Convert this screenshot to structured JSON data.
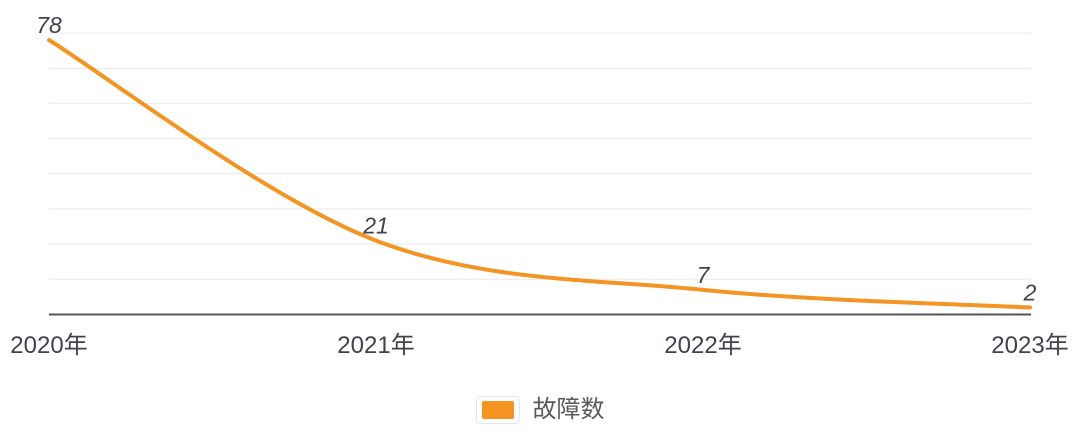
{
  "chart_data": {
    "type": "line",
    "title": "",
    "series_name": "故障数",
    "categories": [
      "2020年",
      "2021年",
      "2022年",
      "2023年"
    ],
    "values": [
      78,
      21,
      7,
      2
    ],
    "data_labels": [
      "78",
      "21",
      "7",
      "2"
    ],
    "xlabel": "",
    "ylabel": "",
    "ylim": [
      0,
      80
    ],
    "y_gridline_step": 10,
    "grid": true,
    "smooth": true,
    "y_axis_labels_visible": false,
    "legend_position": "bottom"
  },
  "legend": {
    "items": [
      {
        "label": "故障数",
        "color": "#f39423"
      }
    ]
  },
  "colors": {
    "background": "#ffffff",
    "line": "#f39423",
    "gridline": "#e9e9e9",
    "axis": "#51565c",
    "data_label": "#3f444a",
    "x_axis_label": "#3f444a",
    "legend_text": "#595959",
    "legend_swatch_border": "#e7e7e7"
  }
}
